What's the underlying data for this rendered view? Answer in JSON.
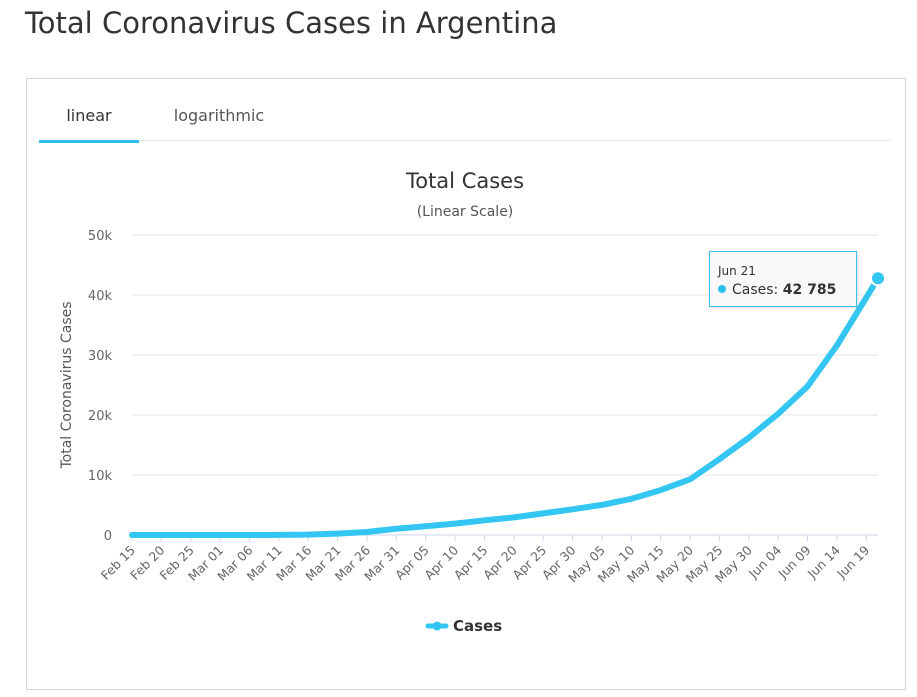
{
  "page": {
    "title": "Total Coronavirus Cases in Argentina"
  },
  "tabs": [
    {
      "label": "linear",
      "active": true
    },
    {
      "label": "logarithmic",
      "active": false
    }
  ],
  "colors": {
    "series": "#33c6f2",
    "accent": "#2cc0ee",
    "grid": "#e6e6e6",
    "axis_text": "#666666"
  },
  "tooltip": {
    "date": "Jun 21",
    "series_label": "Cases:",
    "value": "42 785"
  },
  "chart_data": {
    "type": "line",
    "title": "Total Cases",
    "subtitle": "(Linear Scale)",
    "xlabel": "",
    "ylabel": "Total Coronavirus Cases",
    "ylim": [
      0,
      50000
    ],
    "y_ticks": [
      0,
      10000,
      20000,
      30000,
      40000,
      50000
    ],
    "y_tick_labels": [
      "0",
      "10k",
      "20k",
      "30k",
      "40k",
      "50k"
    ],
    "x_tick_labels": [
      "Feb 15",
      "Feb 20",
      "Feb 25",
      "Mar 01",
      "Mar 06",
      "Mar 11",
      "Mar 16",
      "Mar 21",
      "Mar 26",
      "Mar 31",
      "Apr 05",
      "Apr 10",
      "Apr 15",
      "Apr 20",
      "Apr 25",
      "Apr 30",
      "May 05",
      "May 10",
      "May 15",
      "May 20",
      "May 25",
      "May 30",
      "Jun 04",
      "Jun 09",
      "Jun 14",
      "Jun 19"
    ],
    "x_range": [
      "Feb 15",
      "Jun 21"
    ],
    "grid": true,
    "legend": "bottom-center",
    "series": [
      {
        "name": "Cases",
        "points": [
          [
            "Feb 15",
            0
          ],
          [
            "Mar 01",
            0
          ],
          [
            "Mar 11",
            19
          ],
          [
            "Mar 16",
            65
          ],
          [
            "Mar 21",
            225
          ],
          [
            "Mar 26",
            502
          ],
          [
            "Mar 31",
            1054
          ],
          [
            "Apr 05",
            1451
          ],
          [
            "Apr 10",
            1894
          ],
          [
            "Apr 15",
            2443
          ],
          [
            "Apr 20",
            2941
          ],
          [
            "Apr 25",
            3607
          ],
          [
            "Apr 30",
            4285
          ],
          [
            "May 05",
            5020
          ],
          [
            "May 10",
            6034
          ],
          [
            "May 15",
            7479
          ],
          [
            "May 20",
            9283
          ],
          [
            "May 25",
            12628
          ],
          [
            "May 30",
            16214
          ],
          [
            "Jun 04",
            20197
          ],
          [
            "Jun 09",
            24761
          ],
          [
            "Jun 14",
            31577
          ],
          [
            "Jun 19",
            39570
          ],
          [
            "Jun 21",
            42785
          ]
        ]
      }
    ]
  }
}
